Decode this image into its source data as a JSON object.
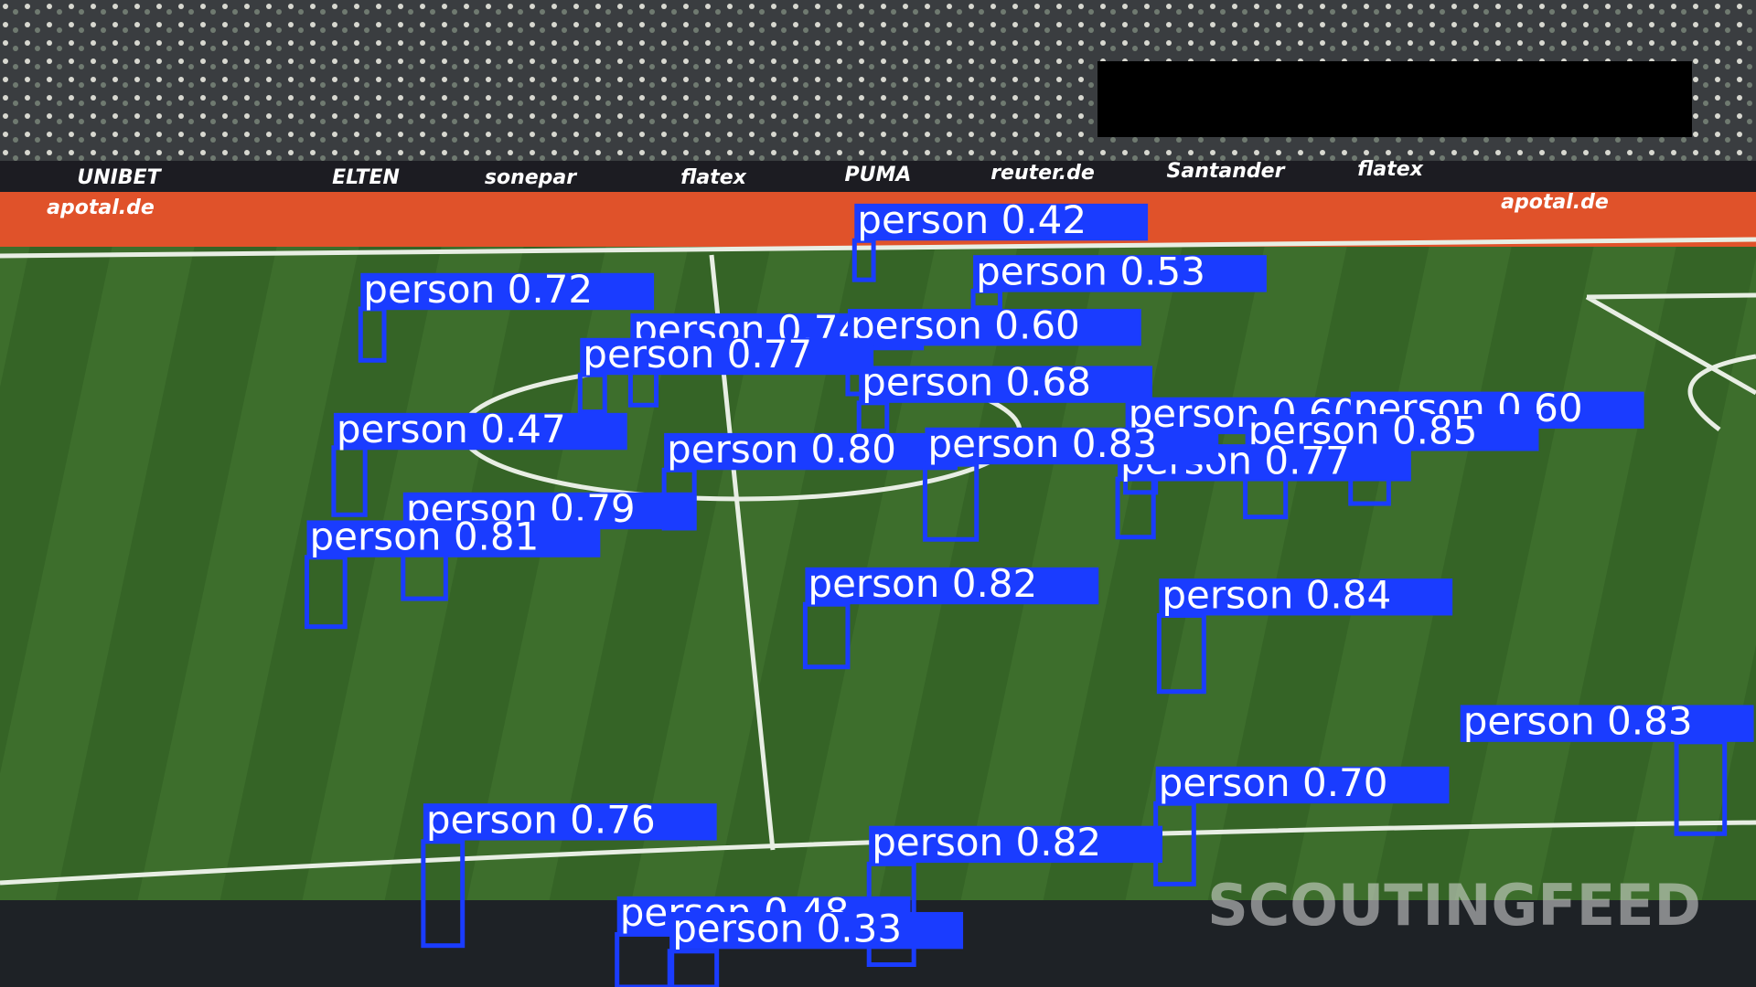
{
  "scene": {
    "ad_boards": [
      "UNIBET",
      "ELTEN",
      "sonepar",
      "flatex",
      "PUMA",
      "reuter.de",
      "apotal.de",
      "Santander",
      "flatex",
      "apotal.de"
    ],
    "watermark": "SCOUTINGFEED"
  },
  "detections": [
    {
      "label": "person 0.42"
    },
    {
      "label": "person 0.53"
    },
    {
      "label": "person 0.72"
    },
    {
      "label": "person 0.74"
    },
    {
      "label": "person 0.60"
    },
    {
      "label": "person 0.77"
    },
    {
      "label": "person 0.68"
    },
    {
      "label": "person 0.47"
    },
    {
      "label": "person 0.60"
    },
    {
      "label": "person 0.60"
    },
    {
      "label": "person 0.85"
    },
    {
      "label": "person 0.77"
    },
    {
      "label": "person 0.80"
    },
    {
      "label": "person 0.83"
    },
    {
      "label": "person 0.79"
    },
    {
      "label": "person 0.81"
    },
    {
      "label": "person 0.82"
    },
    {
      "label": "person 0.84"
    },
    {
      "label": "person 0.83"
    },
    {
      "label": "person 0.70"
    },
    {
      "label": "person 0.76"
    },
    {
      "label": "person 0.82"
    },
    {
      "label": "person 0.48"
    },
    {
      "label": "person 0.33"
    }
  ]
}
